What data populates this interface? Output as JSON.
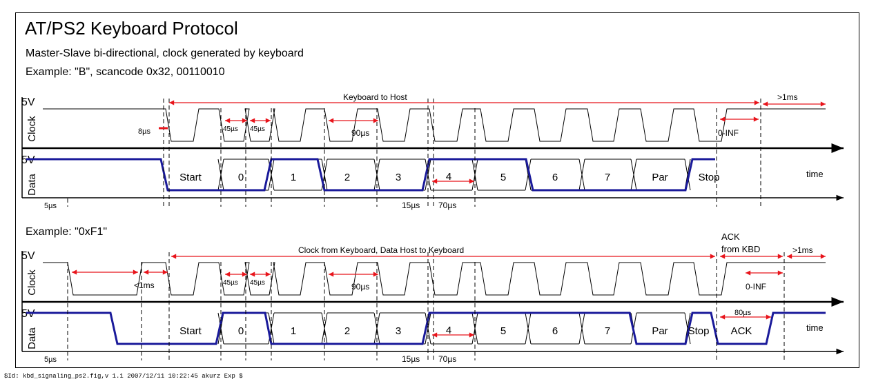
{
  "title": "AT/PS2 Keyboard Protocol",
  "subtitle": "Master-Slave bi-directional, clock generated by keyboard",
  "footer": "$Id: kbd_signaling_ps2.fig,v 1.1 2007/12/11 10:22:45 akurz Exp $",
  "common": {
    "volt": "5V",
    "clock_label": "Clock",
    "data_label": "Data",
    "time_label": "time",
    "bits": [
      "0",
      "1",
      "2",
      "3",
      "4",
      "5",
      "6",
      "7"
    ],
    "us5": "5µs",
    "us15": "15µs",
    "us70": "70µs",
    "us45": "45µs",
    "us90": "90µs",
    "inf": "0-INF",
    "gt1ms": ">1ms"
  },
  "panel1": {
    "example": "Example: \"B\", scancode 0x32, 00110010",
    "direction": "Keyboard to Host",
    "us8": "8µs",
    "fields": [
      "Start",
      "Par",
      "Stop"
    ]
  },
  "panel2": {
    "example": "Example: \"0xF1\"",
    "direction": "Clock from Keyboard, Data Host to Keyboard",
    "lt1ms": "<1ms",
    "ack_from": [
      "ACK",
      "from KBD"
    ],
    "us80": "80µs",
    "fields": [
      "Start",
      "Par",
      "Stop",
      "ACK"
    ]
  },
  "colors": {
    "data_line": "#1a1a9a",
    "timing_arrow": "#e8141b",
    "axis": "#000000"
  }
}
